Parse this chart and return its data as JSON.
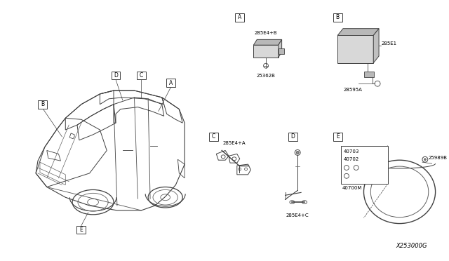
{
  "bg_color": "#ffffff",
  "diagram_id": "X253000G",
  "parts": {
    "A_label": "285E4+B",
    "A_sub": "25362B",
    "B_label": "285E1",
    "B_sub": "28595A",
    "C_label": "285E4+A",
    "D_label": "285E4+C",
    "E_top": "40703",
    "E_mid": "40702",
    "E_bot": "40700M",
    "E_right": "25989B"
  },
  "line_color": "#404040",
  "light_gray": "#d8d8d8",
  "mid_gray": "#b8b8b8"
}
